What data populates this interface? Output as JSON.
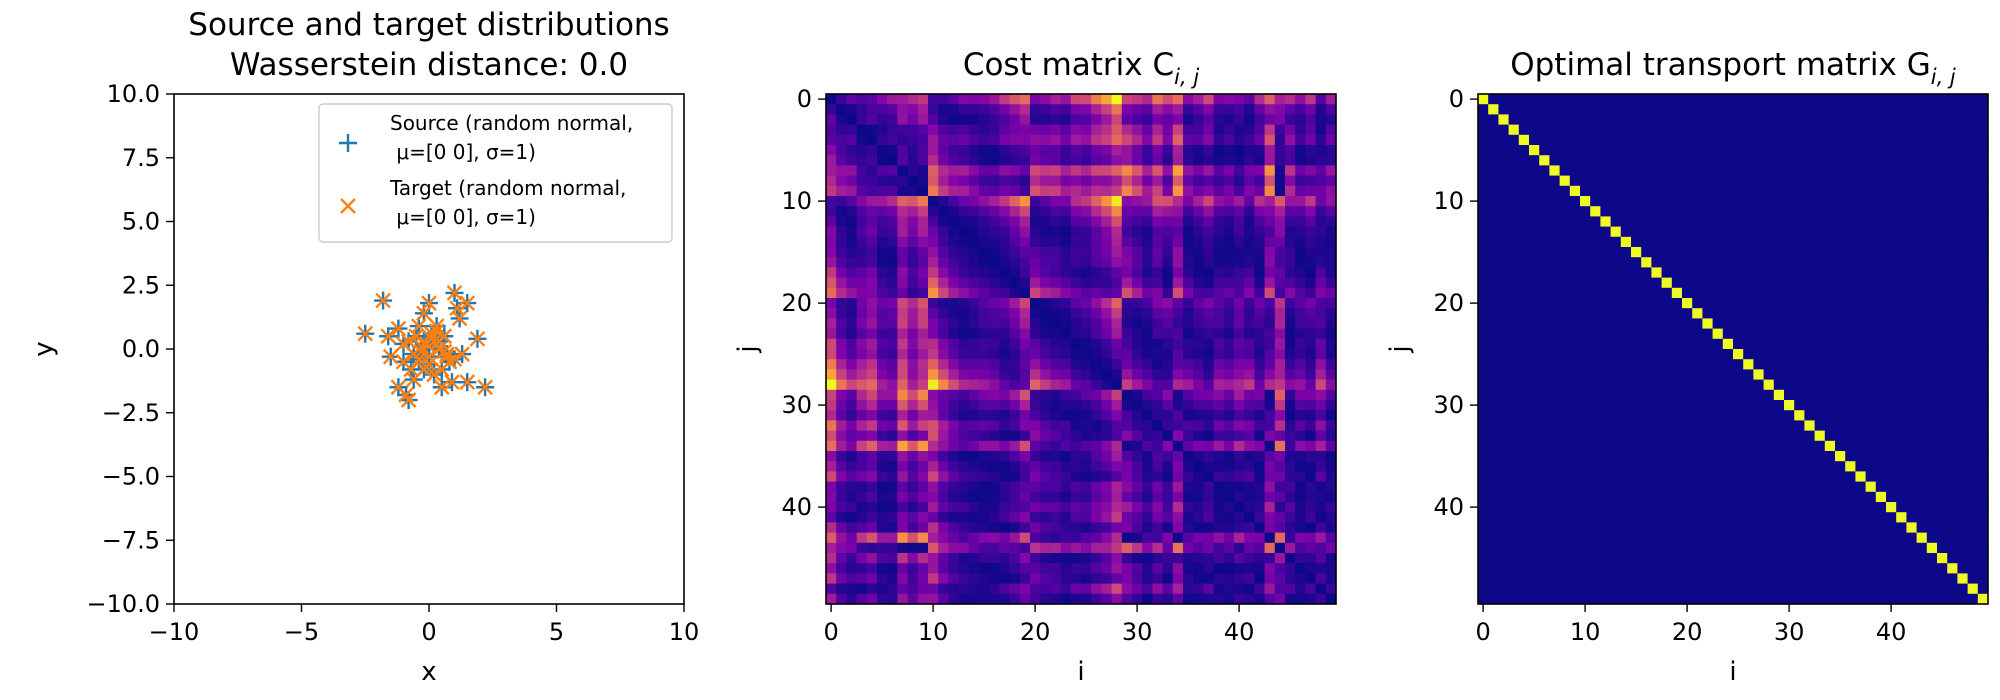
{
  "chart_data": [
    {
      "type": "scatter",
      "title": "Source and target distributions",
      "subtitle": "Wasserstein distance: 0.0",
      "xlabel": "x",
      "ylabel": "y",
      "xlim": [
        -10,
        10
      ],
      "ylim": [
        -10,
        10
      ],
      "xticks": [
        "−10",
        "−5",
        "0",
        "5",
        "10"
      ],
      "yticks": [
        "10.0",
        "7.5",
        "5.0",
        "2.5",
        "0.0",
        "−2.5",
        "−5.0",
        "−7.5",
        "−10.0"
      ],
      "grid": false,
      "legend_position": "top-right",
      "series": [
        {
          "name": "Source (random normal, μ=[0 0], σ=1)",
          "legend_lines": [
            "Source (random normal,",
            " μ=[0 0], σ=1)"
          ],
          "marker": "plus",
          "color": "#1f77b4",
          "x": [
            -1.8,
            -1.2,
            -0.8,
            -0.2,
            0.0,
            0.3,
            0.6,
            1.0,
            1.2,
            1.5,
            -2.5,
            -1.6,
            -1.0,
            -0.6,
            -0.3,
            0.1,
            0.4,
            0.7,
            1.3,
            1.9,
            -1.5,
            -1.0,
            -0.7,
            -0.4,
            0.2,
            0.5,
            0.9,
            1.5,
            2.2,
            -1.2,
            -0.6,
            0.0,
            0.5,
            1.0,
            -0.8,
            -0.3,
            0.4,
            0.8,
            0.1,
            -0.1,
            0.3,
            -0.5,
            0.6,
            -0.9,
            1.1,
            -0.2,
            0.2,
            0.7,
            -0.4,
            0.0
          ],
          "y": [
            1.9,
            0.8,
            0.3,
            1.4,
            1.8,
            0.7,
            0.5,
            2.2,
            1.2,
            1.8,
            0.6,
            0.5,
            0.2,
            -0.2,
            0.1,
            0.4,
            0.3,
            -0.3,
            -0.2,
            0.4,
            -0.3,
            -0.5,
            -0.8,
            -0.4,
            -1.0,
            -0.8,
            -1.3,
            -1.3,
            -1.5,
            -1.5,
            -1.2,
            -0.6,
            -1.5,
            -0.4,
            -2.0,
            -0.1,
            0.0,
            -0.5,
            0.6,
            0.2,
            0.9,
            0.5,
            -0.1,
            -1.8,
            1.6,
            -0.8,
            0.3,
            -0.2,
            0.9,
            -0.3
          ]
        },
        {
          "name": "Target (random normal, μ=[0 0], σ=1)",
          "legend_lines": [
            "Target (random normal,",
            " μ=[0 0], σ=1)"
          ],
          "marker": "x",
          "color": "#ff7f0e",
          "x": [
            -1.8,
            -1.2,
            -0.8,
            -0.2,
            0.0,
            0.3,
            0.6,
            1.0,
            1.2,
            1.5,
            -2.5,
            -1.6,
            -1.0,
            -0.6,
            -0.3,
            0.1,
            0.4,
            0.7,
            1.3,
            1.9,
            -1.5,
            -1.0,
            -0.7,
            -0.4,
            0.2,
            0.5,
            0.9,
            1.5,
            2.2,
            -1.2,
            -0.6,
            0.0,
            0.5,
            1.0,
            -0.8,
            -0.3,
            0.4,
            0.8,
            0.1,
            -0.1,
            0.3,
            -0.5,
            0.6,
            -0.9,
            1.1,
            -0.2,
            0.2,
            0.7,
            -0.4,
            0.0
          ],
          "y": [
            1.9,
            0.8,
            0.3,
            1.4,
            1.8,
            0.7,
            0.5,
            2.2,
            1.2,
            1.8,
            0.6,
            0.5,
            0.2,
            -0.2,
            0.1,
            0.4,
            0.3,
            -0.3,
            -0.2,
            0.4,
            -0.3,
            -0.5,
            -0.8,
            -0.4,
            -1.0,
            -0.8,
            -1.3,
            -1.3,
            -1.5,
            -1.5,
            -1.2,
            -0.6,
            -1.5,
            -0.4,
            -2.0,
            -0.1,
            0.0,
            -0.5,
            0.6,
            0.2,
            0.9,
            0.5,
            -0.1,
            -1.8,
            1.6,
            -0.8,
            0.3,
            -0.2,
            0.9,
            -0.3
          ]
        }
      ]
    },
    {
      "type": "heatmap",
      "title": "Cost matrix C",
      "title_subscript": "i, j",
      "xlabel": "i",
      "ylabel": "j",
      "size": 50,
      "xticks": [
        0,
        10,
        20,
        30,
        40
      ],
      "yticks": [
        0,
        10,
        20,
        30,
        40
      ],
      "colormap": "plasma",
      "values": "pairwise squared Euclidean distances between the 50 source and 50 target points (bright rows/columns at i=10, 12, 16, 21, 42)"
    },
    {
      "type": "heatmap",
      "title": "Optimal transport matrix G",
      "title_subscript": "i, j",
      "xlabel": "i",
      "ylabel": "j",
      "size": 50,
      "xticks": [
        0,
        10,
        20,
        30,
        40
      ],
      "yticks": [
        0,
        10,
        20,
        30,
        40
      ],
      "colormap": "plasma",
      "values": "identity (1 on the diagonal, 0 elsewhere)",
      "background_color": "#0d0887",
      "diagonal_color": "#f0f921"
    }
  ]
}
